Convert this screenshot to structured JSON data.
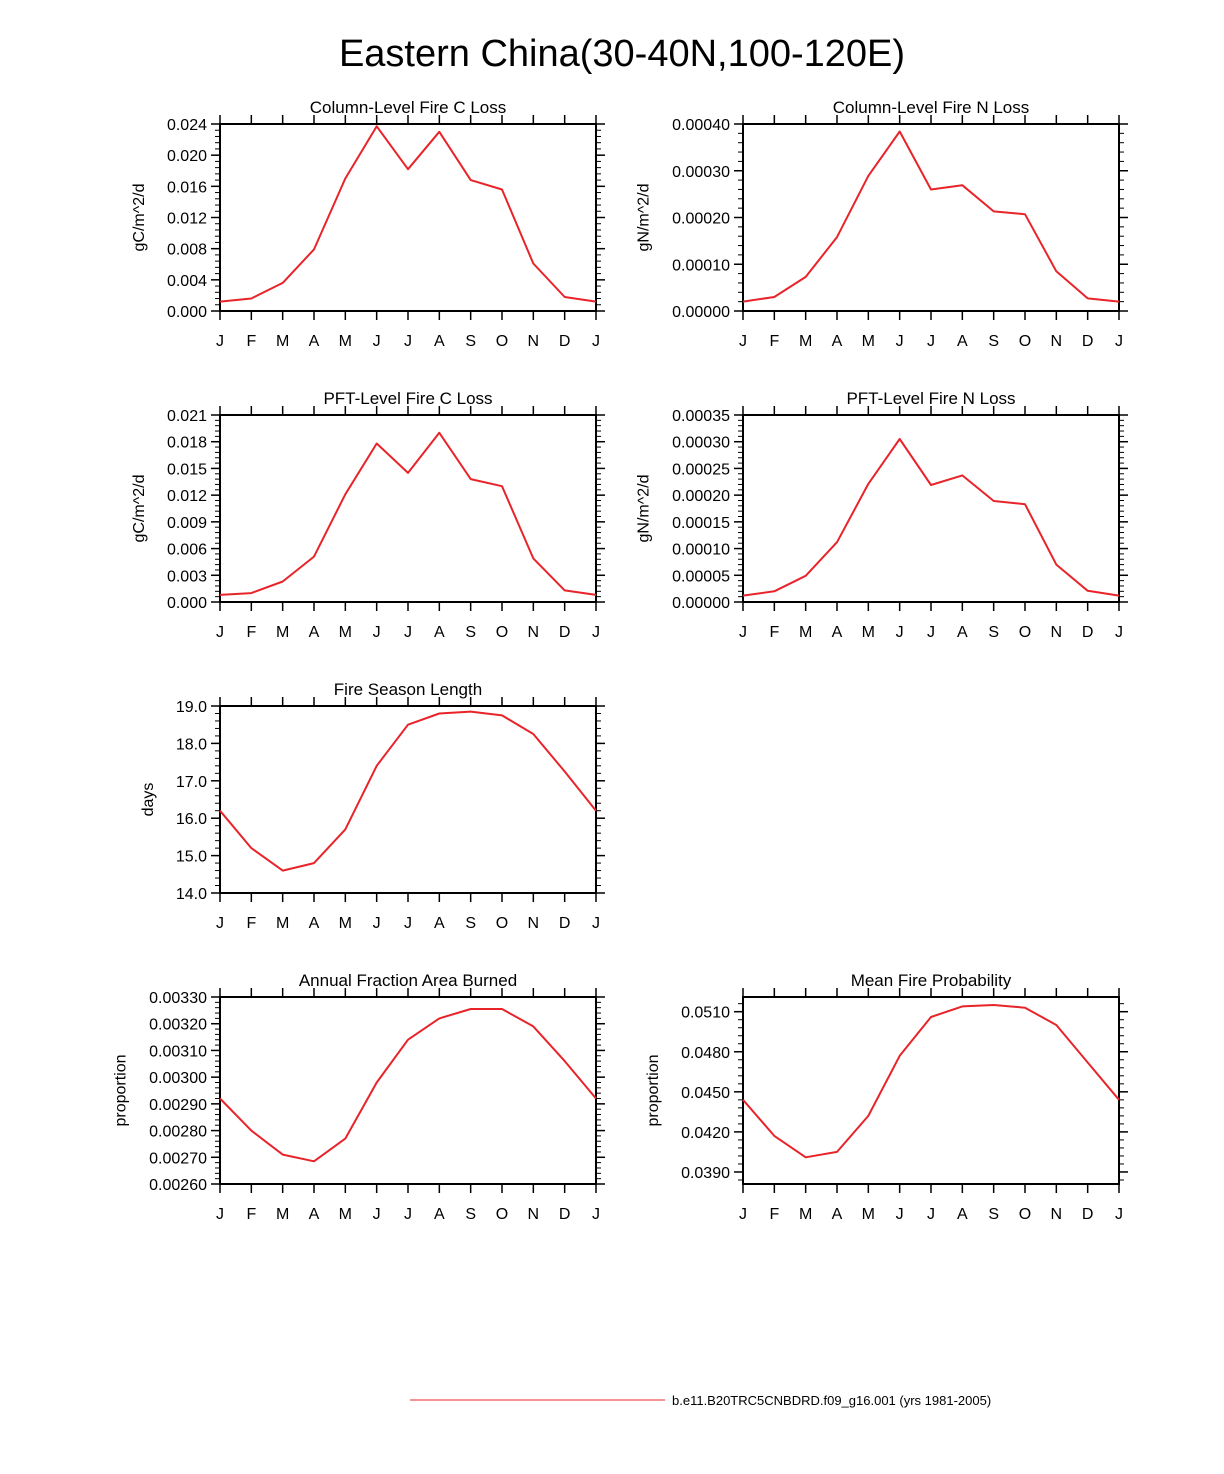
{
  "figure": {
    "title": "Eastern China(30-40N,100-120E)",
    "legend": {
      "color": "#e8242a",
      "label": "b.e11.B20TRC5CNBDRD.f09_g16.001 (yrs 1981-2005)"
    }
  },
  "chart_data": [
    {
      "type": "line",
      "title": "Column-Level Fire C Loss",
      "ylabel": "gC/m^2/d",
      "ylim": [
        0,
        0.024
      ],
      "yticks": [
        0,
        0.004,
        0.008,
        0.012,
        0.016,
        0.02,
        0.024
      ],
      "ytick_labels": [
        "0.000",
        "0.004",
        "0.008",
        "0.012",
        "0.016",
        "0.020",
        "0.024"
      ],
      "x_tick_labels": [
        "J",
        "F",
        "M",
        "A",
        "M",
        "J",
        "J",
        "A",
        "S",
        "O",
        "N",
        "D",
        "J"
      ],
      "series": [
        {
          "name": "b.e11.B20TRC5CNBDRD.f09_g16.001",
          "color": "#e8242a",
          "values": [
            0.0012,
            0.0016,
            0.0036,
            0.0079,
            0.017,
            0.0237,
            0.0182,
            0.023,
            0.0168,
            0.0156,
            0.0061,
            0.0018,
            0.0012
          ]
        }
      ]
    },
    {
      "type": "line",
      "title": "Column-Level Fire N Loss",
      "ylabel": "gN/m^2/d",
      "ylim": [
        0,
        0.0004
      ],
      "yticks": [
        0,
        0.0001,
        0.0002,
        0.0003,
        0.0004
      ],
      "ytick_labels": [
        "0.00000",
        "0.00010",
        "0.00020",
        "0.00030",
        "0.00040"
      ],
      "x_tick_labels": [
        "J",
        "F",
        "M",
        "A",
        "M",
        "J",
        "J",
        "A",
        "S",
        "O",
        "N",
        "D",
        "J"
      ],
      "series": [
        {
          "name": "b.e11.B20TRC5CNBDRD.f09_g16.001",
          "color": "#e8242a",
          "values": [
            2e-05,
            3e-05,
            7.3e-05,
            0.000158,
            0.000289,
            0.000384,
            0.00026,
            0.000269,
            0.000213,
            0.000207,
            8.5e-05,
            2.7e-05,
            2e-05
          ]
        }
      ]
    },
    {
      "type": "line",
      "title": "PFT-Level Fire C Loss",
      "ylabel": "gC/m^2/d",
      "ylim": [
        0,
        0.021
      ],
      "yticks": [
        0,
        0.003,
        0.006,
        0.009,
        0.012,
        0.015,
        0.018,
        0.021
      ],
      "ytick_labels": [
        "0.000",
        "0.003",
        "0.006",
        "0.009",
        "0.012",
        "0.015",
        "0.018",
        "0.021"
      ],
      "x_tick_labels": [
        "J",
        "F",
        "M",
        "A",
        "M",
        "J",
        "J",
        "A",
        "S",
        "O",
        "N",
        "D",
        "J"
      ],
      "series": [
        {
          "name": "b.e11.B20TRC5CNBDRD.f09_g16.001",
          "color": "#e8242a",
          "values": [
            0.0008,
            0.001,
            0.0023,
            0.0051,
            0.0121,
            0.0178,
            0.0145,
            0.019,
            0.0138,
            0.013,
            0.0049,
            0.0013,
            0.0008
          ]
        }
      ]
    },
    {
      "type": "line",
      "title": "PFT-Level Fire N Loss",
      "ylabel": "gN/m^2/d",
      "ylim": [
        0,
        0.00035
      ],
      "yticks": [
        0,
        5e-05,
        0.0001,
        0.00015,
        0.0002,
        0.00025,
        0.0003,
        0.00035
      ],
      "ytick_labels": [
        "0.00000",
        "0.00005",
        "0.00010",
        "0.00015",
        "0.00020",
        "0.00025",
        "0.00030",
        "0.00035"
      ],
      "x_tick_labels": [
        "J",
        "F",
        "M",
        "A",
        "M",
        "J",
        "J",
        "A",
        "S",
        "O",
        "N",
        "D",
        "J"
      ],
      "series": [
        {
          "name": "b.e11.B20TRC5CNBDRD.f09_g16.001",
          "color": "#e8242a",
          "values": [
            1.2e-05,
            2e-05,
            4.9e-05,
            0.000112,
            0.000221,
            0.000305,
            0.000219,
            0.000237,
            0.000189,
            0.000183,
            7e-05,
            2.1e-05,
            1.2e-05
          ]
        }
      ]
    },
    {
      "type": "line",
      "title": "Fire Season Length",
      "ylabel": "days",
      "ylim": [
        14.0,
        19.0
      ],
      "yticks": [
        14,
        15,
        16,
        17,
        18,
        19
      ],
      "ytick_labels": [
        "14.0",
        "15.0",
        "16.0",
        "17.0",
        "18.0",
        "19.0"
      ],
      "x_tick_labels": [
        "J",
        "F",
        "M",
        "A",
        "M",
        "J",
        "J",
        "A",
        "S",
        "O",
        "N",
        "D",
        "J"
      ],
      "series": [
        {
          "name": "b.e11.B20TRC5CNBDRD.f09_g16.001",
          "color": "#e8242a",
          "values": [
            16.2,
            15.2,
            14.6,
            14.8,
            15.7,
            17.4,
            18.5,
            18.8,
            18.85,
            18.75,
            18.25,
            17.25,
            16.2
          ]
        }
      ]
    },
    {
      "type": "line",
      "title": "Annual Fraction Area Burned",
      "ylabel": "proportion",
      "ylim": [
        0.0026,
        0.0033
      ],
      "yticks": [
        0.0026,
        0.0027,
        0.0028,
        0.0029,
        0.003,
        0.0031,
        0.0032,
        0.0033
      ],
      "ytick_labels": [
        "0.00260",
        "0.00270",
        "0.00280",
        "0.00290",
        "0.00300",
        "0.00310",
        "0.00320",
        "0.00330"
      ],
      "x_tick_labels": [
        "J",
        "F",
        "M",
        "A",
        "M",
        "J",
        "J",
        "A",
        "S",
        "O",
        "N",
        "D",
        "J"
      ],
      "series": [
        {
          "name": "b.e11.B20TRC5CNBDRD.f09_g16.001",
          "color": "#e8242a",
          "values": [
            0.00292,
            0.0028,
            0.00271,
            0.002685,
            0.00277,
            0.00298,
            0.00314,
            0.00322,
            0.003255,
            0.003255,
            0.00319,
            0.00306,
            0.00292
          ]
        }
      ]
    },
    {
      "type": "line",
      "title": "Mean Fire Probability",
      "ylabel": "proportion",
      "ylim": [
        0.0381,
        0.0521
      ],
      "yticks": [
        0.039,
        0.042,
        0.045,
        0.048,
        0.051
      ],
      "ytick_labels": [
        "0.0390",
        "0.0420",
        "0.0450",
        "0.0480",
        "0.0510"
      ],
      "x_tick_labels": [
        "J",
        "F",
        "M",
        "A",
        "M",
        "J",
        "J",
        "A",
        "S",
        "O",
        "N",
        "D",
        "J"
      ],
      "series": [
        {
          "name": "b.e11.B20TRC5CNBDRD.f09_g16.001",
          "color": "#e8242a",
          "values": [
            0.0444,
            0.0417,
            0.0401,
            0.0405,
            0.0432,
            0.0477,
            0.0506,
            0.0514,
            0.0515,
            0.0513,
            0.05,
            0.0472,
            0.0444
          ]
        }
      ]
    }
  ]
}
